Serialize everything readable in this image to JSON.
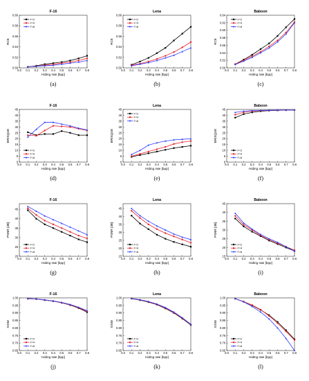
{
  "colors": {
    "F=2": "#000000",
    "F=4": "#e8212a",
    "F=8": "#2f3cff"
  },
  "chart_data": [
    {
      "type": "line",
      "panel": "(a)",
      "title": "F-16",
      "xlabel": "Hiding rate [bpp]",
      "ylabel": "RCE",
      "xlim": [
        0.0,
        0.8
      ],
      "ylim": [
        0.5,
        0.6
      ],
      "xticks": [
        "0.0",
        "0.1",
        "0.2",
        "0.3",
        "0.4",
        "0.5",
        "0.6",
        "0.7",
        "0.8"
      ],
      "yticks": [
        "0.50",
        "0.52",
        "0.54",
        "0.56",
        "0.58",
        "0.60"
      ],
      "x": [
        0.1,
        0.2,
        0.3,
        0.4,
        0.5,
        0.6,
        0.7,
        0.8
      ],
      "legend_position": "top-left",
      "series": [
        {
          "name": "F=2",
          "values": [
            0.502,
            0.504,
            0.507,
            0.509,
            0.511,
            0.514,
            0.518,
            0.523
          ]
        },
        {
          "name": "F=4",
          "values": [
            0.502,
            0.503,
            0.505,
            0.507,
            0.509,
            0.511,
            0.514,
            0.518
          ]
        },
        {
          "name": "F=8",
          "values": [
            0.502,
            0.503,
            0.504,
            0.505,
            0.507,
            0.509,
            0.511,
            0.514
          ]
        }
      ]
    },
    {
      "type": "line",
      "panel": "(b)",
      "title": "Lena",
      "xlabel": "Hiding rate [bpp]",
      "ylabel": "RCE",
      "xlim": [
        0.0,
        0.8
      ],
      "ylim": [
        0.5,
        0.6
      ],
      "xticks": [
        "0.0",
        "0.1",
        "0.2",
        "0.3",
        "0.4",
        "0.5",
        "0.6",
        "0.7",
        "0.8"
      ],
      "yticks": [
        "0.50",
        "0.52",
        "0.54",
        "0.56",
        "0.58",
        "0.60"
      ],
      "x": [
        0.1,
        0.2,
        0.3,
        0.4,
        0.5,
        0.6,
        0.7,
        0.8
      ],
      "legend_position": "top-left",
      "series": [
        {
          "name": "F=2",
          "values": [
            0.506,
            0.512,
            0.519,
            0.528,
            0.538,
            0.552,
            0.565,
            0.578
          ]
        },
        {
          "name": "F=4",
          "values": [
            0.505,
            0.508,
            0.512,
            0.517,
            0.523,
            0.53,
            0.539,
            0.549
          ]
        },
        {
          "name": "F=8",
          "values": [
            0.504,
            0.507,
            0.51,
            0.514,
            0.519,
            0.524,
            0.531,
            0.538
          ]
        }
      ]
    },
    {
      "type": "line",
      "panel": "(c)",
      "title": "Baboon",
      "xlabel": "Hiding rate [bpp]",
      "ylabel": "RCE",
      "xlim": [
        0.0,
        0.8
      ],
      "ylim": [
        0.5,
        0.64
      ],
      "xticks": [
        "0.0",
        "0.1",
        "0.2",
        "0.3",
        "0.4",
        "0.5",
        "0.6",
        "0.7",
        "0.8"
      ],
      "yticks": [
        "0.50",
        "0.52",
        "0.54",
        "0.56",
        "0.58",
        "0.60",
        "0.62",
        "0.64"
      ],
      "x": [
        0.1,
        0.2,
        0.3,
        0.4,
        0.5,
        0.6,
        0.7,
        0.8
      ],
      "legend_position": "top-left",
      "series": [
        {
          "name": "F=2",
          "values": [
            0.51,
            0.522,
            0.535,
            0.55,
            0.565,
            0.585,
            0.608,
            0.63
          ]
        },
        {
          "name": "F=4",
          "values": [
            0.51,
            0.52,
            0.531,
            0.543,
            0.557,
            0.573,
            0.594,
            0.622
          ]
        },
        {
          "name": "F=8",
          "values": [
            0.509,
            0.518,
            0.528,
            0.54,
            0.553,
            0.569,
            0.59,
            0.62
          ]
        }
      ]
    },
    {
      "type": "line",
      "panel": "(d)",
      "title": "F-16",
      "xlabel": "Hiding rate [bpp]",
      "ylabel": "BRISQUE",
      "xlim": [
        0.0,
        0.8
      ],
      "ylim": [
        0,
        45
      ],
      "xticks": [
        "0.0",
        "0.1",
        "0.2",
        "0.3",
        "0.4",
        "0.5",
        "0.6",
        "0.7",
        "0.8"
      ],
      "yticks": [
        "0",
        "5",
        "10",
        "15",
        "20",
        "25",
        "30",
        "35",
        "40",
        "45"
      ],
      "x": [
        0.1,
        0.2,
        0.3,
        0.4,
        0.5,
        0.6,
        0.7,
        0.8
      ],
      "legend_position": "bottom-left",
      "series": [
        {
          "name": "F=2",
          "values": [
            25.5,
            23.0,
            24.0,
            24.0,
            26.5,
            25.0,
            23.0,
            23.0
          ]
        },
        {
          "name": "F=4",
          "values": [
            23.0,
            22.5,
            27.0,
            31.0,
            30.5,
            30.0,
            28.5,
            27.0
          ]
        },
        {
          "name": "F=8",
          "values": [
            21.5,
            28.0,
            34.0,
            34.0,
            32.5,
            31.0,
            29.0,
            27.5
          ]
        }
      ]
    },
    {
      "type": "line",
      "panel": "(e)",
      "title": "Lena",
      "xlabel": "Hiding rate [bpp]",
      "ylabel": "BRISQUE",
      "xlim": [
        0.0,
        0.8
      ],
      "ylim": [
        0,
        45
      ],
      "xticks": [
        "0.0",
        "0.1",
        "0.2",
        "0.3",
        "0.4",
        "0.5",
        "0.6",
        "0.7",
        "0.8"
      ],
      "yticks": [
        "0",
        "5",
        "10",
        "15",
        "20",
        "25",
        "30",
        "35",
        "40",
        "45"
      ],
      "x": [
        0.1,
        0.2,
        0.3,
        0.4,
        0.5,
        0.6,
        0.7,
        0.8
      ],
      "legend_position": "top-left",
      "series": [
        {
          "name": "F=2",
          "values": [
            4.5,
            6.0,
            7.5,
            9.0,
            10.5,
            12.0,
            13.0,
            14.0
          ]
        },
        {
          "name": "F=4",
          "values": [
            5.0,
            7.0,
            9.0,
            11.0,
            13.0,
            15.5,
            17.0,
            18.0
          ]
        },
        {
          "name": "F=8",
          "values": [
            6.5,
            10.0,
            14.5,
            16.5,
            18.0,
            19.0,
            19.5,
            20.0
          ]
        }
      ]
    },
    {
      "type": "line",
      "panel": "(f)",
      "title": "Baboon",
      "xlabel": "Hiding rate [bpp]",
      "ylabel": "BRISQUE",
      "xlim": [
        0.0,
        0.8
      ],
      "ylim": [
        0,
        45
      ],
      "xticks": [
        "0.0",
        "0.1",
        "0.2",
        "0.3",
        "0.4",
        "0.5",
        "0.6",
        "0.7",
        "0.8"
      ],
      "yticks": [
        "0",
        "5",
        "10",
        "15",
        "20",
        "25",
        "30",
        "35",
        "40",
        "45"
      ],
      "x": [
        0.1,
        0.2,
        0.3,
        0.4,
        0.5,
        0.6,
        0.7,
        0.8
      ],
      "legend_position": "bottom-left",
      "series": [
        {
          "name": "F=2",
          "values": [
            38.0,
            41.0,
            42.5,
            43.5,
            44.0,
            44.2,
            44.4,
            44.5
          ]
        },
        {
          "name": "F=4",
          "values": [
            40.5,
            42.5,
            43.5,
            44.0,
            44.2,
            44.3,
            44.4,
            44.5
          ]
        },
        {
          "name": "F=8",
          "values": [
            42.5,
            43.5,
            44.0,
            44.2,
            44.3,
            44.4,
            44.5,
            44.5
          ]
        }
      ]
    },
    {
      "type": "line",
      "panel": "(g)",
      "title": "F-16",
      "xlabel": "Hiding rate [bpp]",
      "ylabel": "PSNR [dB]",
      "xlim": [
        0.0,
        0.8
      ],
      "ylim": [
        20,
        48
      ],
      "xticks": [
        "0.0",
        "0.1",
        "0.2",
        "0.3",
        "0.4",
        "0.5",
        "0.6",
        "0.7",
        "0.8"
      ],
      "yticks": [
        "20",
        "25",
        "30",
        "35",
        "40",
        "45"
      ],
      "x": [
        0.1,
        0.2,
        0.3,
        0.4,
        0.5,
        0.6,
        0.7,
        0.8
      ],
      "legend_position": "bottom-left",
      "series": [
        {
          "name": "F=2",
          "values": [
            44.5,
            40.0,
            37.0,
            35.0,
            33.0,
            31.0,
            29.0,
            27.5
          ]
        },
        {
          "name": "F=4",
          "values": [
            45.5,
            42.0,
            39.0,
            37.0,
            35.0,
            33.0,
            31.0,
            29.5
          ]
        },
        {
          "name": "F=8",
          "values": [
            46.5,
            44.0,
            41.5,
            39.5,
            37.5,
            35.5,
            33.5,
            31.5
          ]
        }
      ]
    },
    {
      "type": "line",
      "panel": "(h)",
      "title": "Lena",
      "xlabel": "Hiding rate [bpp]",
      "ylabel": "PSNR [dB]",
      "xlim": [
        0.0,
        0.8
      ],
      "ylim": [
        15,
        48
      ],
      "xticks": [
        "0.0",
        "0.1",
        "0.2",
        "0.3",
        "0.4",
        "0.5",
        "0.6",
        "0.7",
        "0.8"
      ],
      "yticks": [
        "15",
        "20",
        "25",
        "30",
        "35",
        "40",
        "45"
      ],
      "x": [
        0.1,
        0.2,
        0.3,
        0.4,
        0.5,
        0.6,
        0.7,
        0.8
      ],
      "legend_position": "bottom-left",
      "series": [
        {
          "name": "F=2",
          "values": [
            40.5,
            35.5,
            32.0,
            28.5,
            26.0,
            24.0,
            22.5,
            21.0
          ]
        },
        {
          "name": "F=4",
          "values": [
            43.5,
            39.0,
            35.0,
            32.0,
            29.5,
            27.5,
            25.5,
            23.5
          ]
        },
        {
          "name": "F=8",
          "values": [
            45.0,
            40.5,
            37.0,
            34.0,
            31.5,
            29.0,
            27.0,
            25.5
          ]
        }
      ]
    },
    {
      "type": "line",
      "panel": "(i)",
      "title": "Baboon",
      "xlabel": "Hiding rate [bpp]",
      "ylabel": "PSNR [dB]",
      "xlim": [
        0.0,
        0.8
      ],
      "ylim": [
        15,
        45
      ],
      "xticks": [
        "0.0",
        "0.1",
        "0.2",
        "0.3",
        "0.4",
        "0.5",
        "0.6",
        "0.7",
        "0.8"
      ],
      "yticks": [
        "15",
        "20",
        "25",
        "30",
        "35",
        "40",
        "45"
      ],
      "x": [
        0.1,
        0.2,
        0.3,
        0.4,
        0.5,
        0.6,
        0.7,
        0.8
      ],
      "legend_position": "bottom-left",
      "series": [
        {
          "name": "F=2",
          "values": [
            36.5,
            32.0,
            29.0,
            26.5,
            24.0,
            22.0,
            20.0,
            18.0
          ]
        },
        {
          "name": "F=4",
          "values": [
            38.0,
            33.0,
            30.0,
            27.0,
            24.5,
            22.5,
            20.5,
            18.5
          ]
        },
        {
          "name": "F=8",
          "values": [
            39.5,
            34.0,
            30.5,
            27.5,
            25.0,
            23.0,
            20.5,
            18.0
          ]
        }
      ]
    },
    {
      "type": "line",
      "panel": "(j)",
      "title": "F-16",
      "xlabel": "Hiding rate [bpp]",
      "ylabel": "SSIM",
      "xlim": [
        0.0,
        0.8
      ],
      "ylim": [
        0.65,
        1.0
      ],
      "xticks": [
        "0.0",
        "0.1",
        "0.2",
        "0.3",
        "0.4",
        "0.5",
        "0.6",
        "0.7",
        "0.8"
      ],
      "yticks": [
        "0.65",
        "0.70",
        "0.75",
        "0.80",
        "0.85",
        "0.90",
        "0.95",
        "1.00"
      ],
      "x": [
        0.1,
        0.2,
        0.3,
        0.4,
        0.5,
        0.6,
        0.7,
        0.8
      ],
      "legend_position": "bottom-left",
      "series": [
        {
          "name": "F=2",
          "values": [
            0.995,
            0.992,
            0.985,
            0.978,
            0.967,
            0.952,
            0.932,
            0.905
          ]
        },
        {
          "name": "F=4",
          "values": [
            0.995,
            0.992,
            0.986,
            0.979,
            0.968,
            0.954,
            0.935,
            0.91
          ]
        },
        {
          "name": "F=8",
          "values": [
            0.996,
            0.993,
            0.987,
            0.98,
            0.97,
            0.956,
            0.938,
            0.915
          ]
        }
      ]
    },
    {
      "type": "line",
      "panel": "(k)",
      "title": "Lena",
      "xlabel": "Hiding rate [bpp]",
      "ylabel": "SSIM",
      "xlim": [
        0.0,
        0.8
      ],
      "ylim": [
        0.65,
        1.0
      ],
      "xticks": [
        "0.0",
        "0.1",
        "0.2",
        "0.3",
        "0.4",
        "0.5",
        "0.6",
        "0.7",
        "0.8"
      ],
      "yticks": [
        "0.65",
        "0.70",
        "0.75",
        "0.80",
        "0.85",
        "0.90",
        "0.95",
        "1.00"
      ],
      "x": [
        0.1,
        0.2,
        0.3,
        0.4,
        0.5,
        0.6,
        0.7,
        0.8
      ],
      "legend_position": "bottom-left",
      "series": [
        {
          "name": "F=2",
          "values": [
            0.995,
            0.985,
            0.972,
            0.955,
            0.93,
            0.9,
            0.862,
            0.82
          ]
        },
        {
          "name": "F=4",
          "values": [
            0.996,
            0.987,
            0.974,
            0.957,
            0.933,
            0.903,
            0.865,
            0.823
          ]
        },
        {
          "name": "F=8",
          "values": [
            0.996,
            0.988,
            0.976,
            0.959,
            0.936,
            0.906,
            0.868,
            0.825
          ]
        }
      ]
    },
    {
      "type": "line",
      "panel": "(l)",
      "title": "Baboon",
      "xlabel": "Hiding rate [bpp]",
      "ylabel": "SSIM",
      "xlim": [
        0.0,
        0.8
      ],
      "ylim": [
        0.65,
        1.0
      ],
      "xticks": [
        "0.0",
        "0.1",
        "0.2",
        "0.3",
        "0.4",
        "0.5",
        "0.6",
        "0.7",
        "0.8"
      ],
      "yticks": [
        "0.65",
        "0.70",
        "0.75",
        "0.80",
        "0.85",
        "0.90",
        "0.95",
        "1.00"
      ],
      "x": [
        0.1,
        0.2,
        0.3,
        0.4,
        0.5,
        0.6,
        0.7,
        0.8
      ],
      "legend_position": "bottom-left",
      "series": [
        {
          "name": "F=2",
          "values": [
            0.995,
            0.975,
            0.95,
            0.92,
            0.885,
            0.84,
            0.785,
            0.725
          ]
        },
        {
          "name": "F=4",
          "values": [
            0.995,
            0.975,
            0.952,
            0.922,
            0.88,
            0.832,
            0.777,
            0.72
          ]
        },
        {
          "name": "F=8",
          "values": [
            0.995,
            0.973,
            0.943,
            0.906,
            0.86,
            0.8,
            0.73,
            0.65
          ]
        }
      ]
    }
  ]
}
